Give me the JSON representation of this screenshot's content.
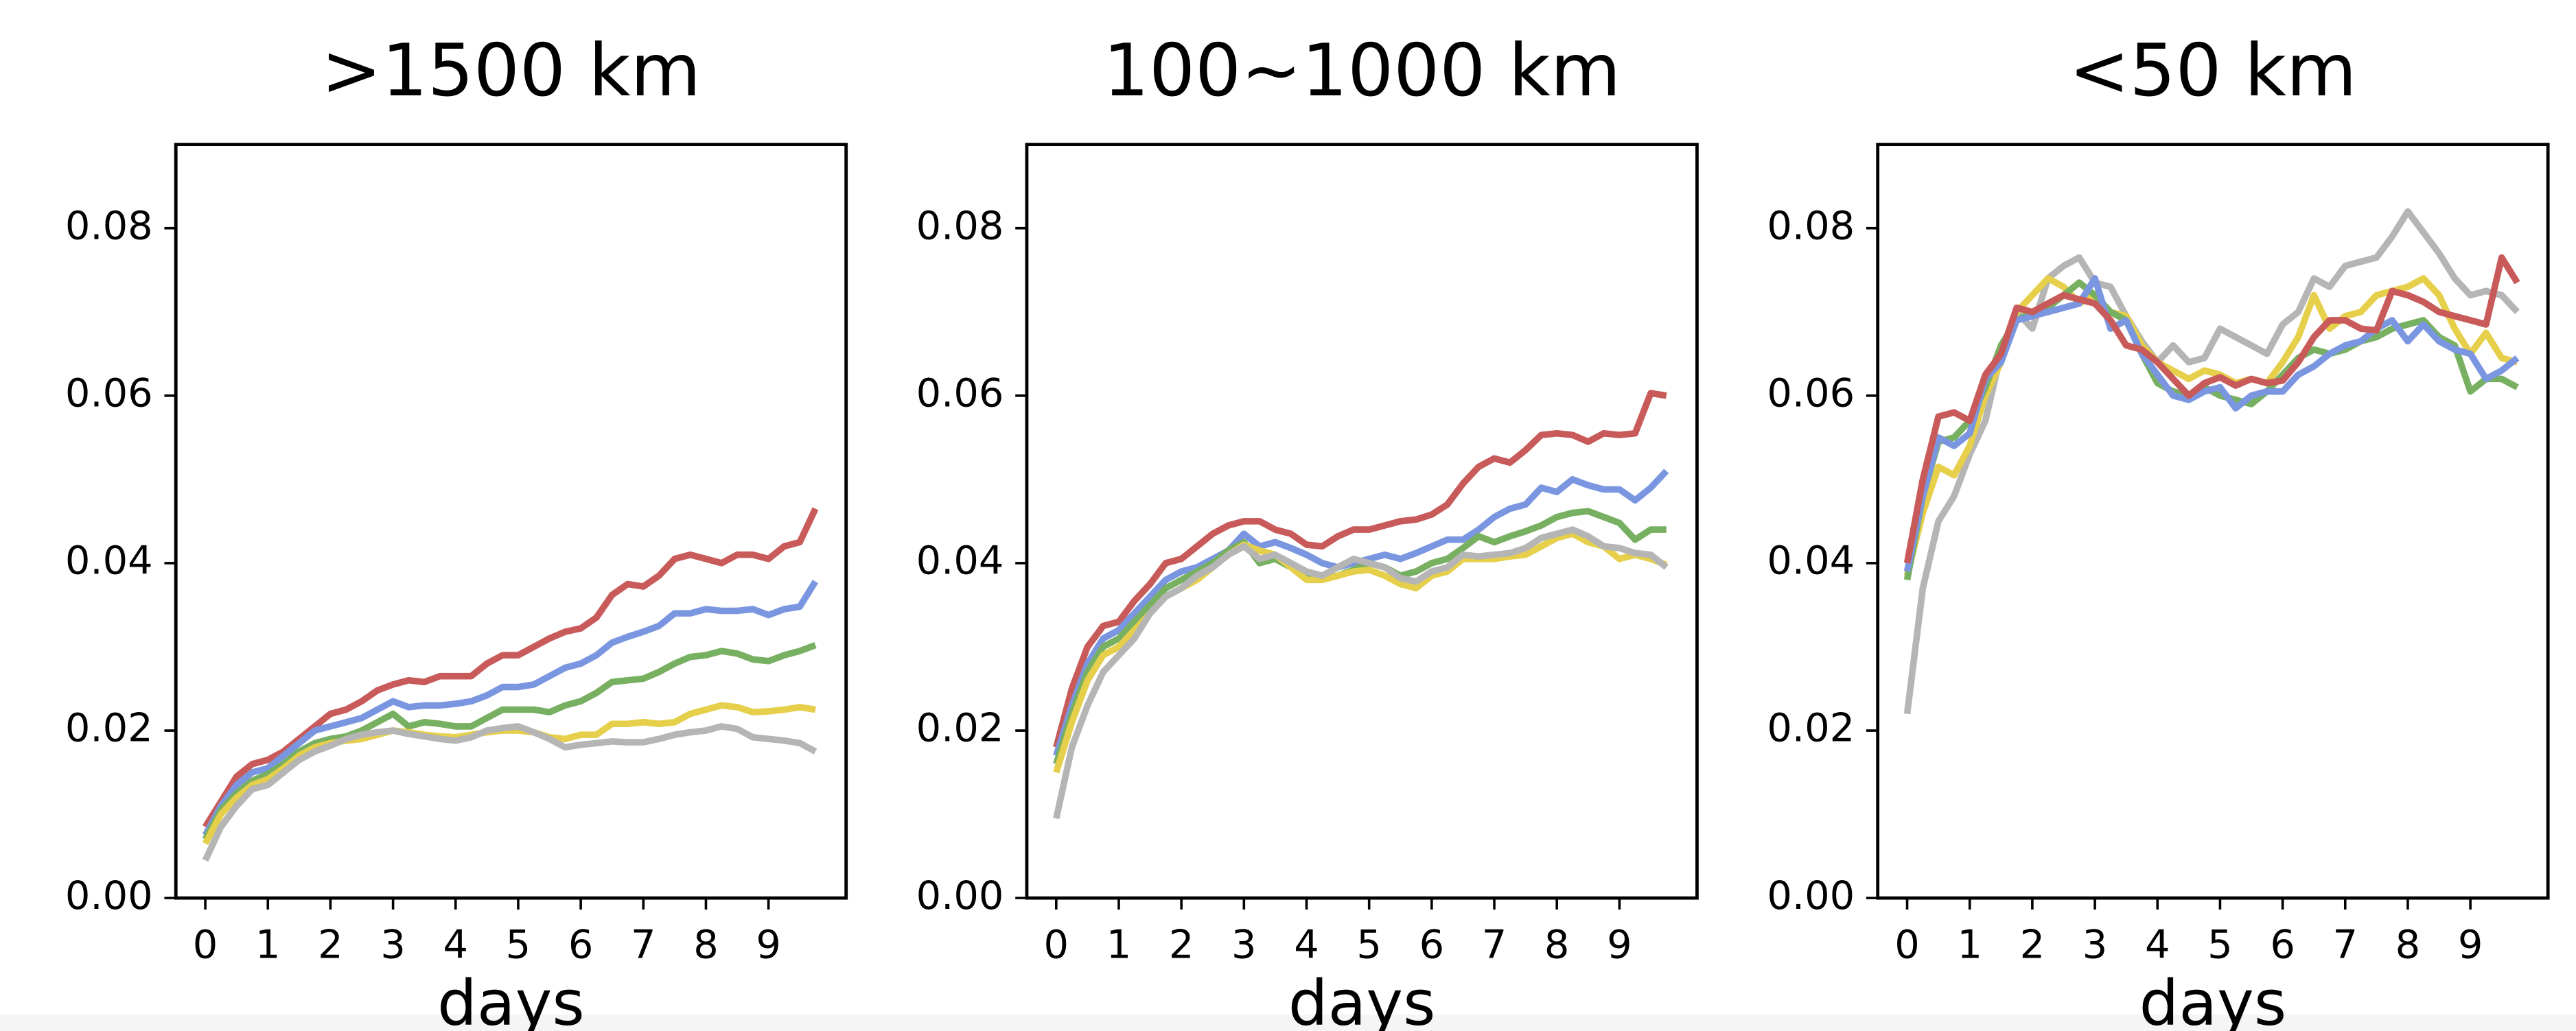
{
  "chart_data": [
    {
      "type": "line",
      "title": ">1500 km",
      "xlabel": "days",
      "x": [
        0,
        0.25,
        0.5,
        0.75,
        1,
        1.25,
        1.5,
        1.75,
        2,
        2.25,
        2.5,
        2.75,
        3,
        3.25,
        3.5,
        3.75,
        4,
        4.25,
        4.5,
        4.75,
        5,
        5.25,
        5.5,
        5.75,
        6,
        6.25,
        6.5,
        6.75,
        7,
        7.25,
        7.5,
        7.75,
        8,
        8.25,
        8.5,
        8.75,
        9,
        9.25,
        9.5,
        9.75
      ],
      "xlim": [
        -0.47,
        10.24
      ],
      "xticks": [
        0,
        1,
        2,
        3,
        4,
        5,
        6,
        7,
        8,
        9
      ],
      "ylim": [
        0,
        0.09
      ],
      "yticks": [
        {
          "value": 0,
          "label": "0.00"
        },
        {
          "value": 0.02,
          "label": "0.02"
        },
        {
          "value": 0.04,
          "label": "0.04"
        },
        {
          "value": 0.06,
          "label": "0.06"
        },
        {
          "value": 0.08,
          "label": "0.08"
        }
      ],
      "series": [
        {
          "color": "#c85a5a",
          "values": [
            0.0085,
            0.0115,
            0.0145,
            0.016,
            0.0165,
            0.0175,
            0.019,
            0.0205,
            0.022,
            0.0225,
            0.0235,
            0.0248,
            0.0255,
            0.026,
            0.0258,
            0.0265,
            0.0265,
            0.0265,
            0.028,
            0.029,
            0.029,
            0.03,
            0.031,
            0.0318,
            0.0322,
            0.0335,
            0.0362,
            0.0375,
            0.0372,
            0.0385,
            0.0405,
            0.041,
            0.0405,
            0.04,
            0.041,
            0.041,
            0.0405,
            0.042,
            0.0425,
            0.0465
          ]
        },
        {
          "color": "#7b96e0",
          "values": [
            0.0075,
            0.011,
            0.0135,
            0.015,
            0.0155,
            0.017,
            0.0185,
            0.02,
            0.0205,
            0.021,
            0.0215,
            0.0225,
            0.0235,
            0.0228,
            0.023,
            0.023,
            0.0232,
            0.0235,
            0.0242,
            0.0252,
            0.0252,
            0.0255,
            0.0265,
            0.0275,
            0.028,
            0.029,
            0.0305,
            0.0312,
            0.0318,
            0.0325,
            0.034,
            0.034,
            0.0345,
            0.0343,
            0.0343,
            0.0345,
            0.0338,
            0.0345,
            0.0348,
            0.0378
          ]
        },
        {
          "color": "#78b062",
          "values": [
            0.007,
            0.0105,
            0.0125,
            0.014,
            0.0148,
            0.016,
            0.0175,
            0.0185,
            0.019,
            0.0193,
            0.02,
            0.021,
            0.022,
            0.0205,
            0.021,
            0.0208,
            0.0205,
            0.0205,
            0.0215,
            0.0225,
            0.0225,
            0.0225,
            0.0222,
            0.023,
            0.0235,
            0.0245,
            0.0258,
            0.026,
            0.0262,
            0.027,
            0.028,
            0.0288,
            0.029,
            0.0295,
            0.0292,
            0.0285,
            0.0283,
            0.029,
            0.0295,
            0.0302
          ]
        },
        {
          "color": "#e6cf4a",
          "values": [
            0.0065,
            0.01,
            0.012,
            0.0135,
            0.0142,
            0.0155,
            0.017,
            0.018,
            0.0185,
            0.0188,
            0.019,
            0.0195,
            0.02,
            0.0198,
            0.0195,
            0.0193,
            0.0192,
            0.0195,
            0.0198,
            0.02,
            0.02,
            0.0198,
            0.0192,
            0.019,
            0.0195,
            0.0195,
            0.0208,
            0.0208,
            0.021,
            0.0208,
            0.021,
            0.022,
            0.0225,
            0.023,
            0.0228,
            0.0222,
            0.0223,
            0.0225,
            0.0228,
            0.0225
          ]
        },
        {
          "color": "#b5b5b5",
          "values": [
            0.0045,
            0.0085,
            0.011,
            0.013,
            0.0135,
            0.015,
            0.0165,
            0.0175,
            0.0182,
            0.019,
            0.0195,
            0.0198,
            0.02,
            0.0196,
            0.0193,
            0.019,
            0.0188,
            0.0192,
            0.02,
            0.0203,
            0.0205,
            0.0198,
            0.019,
            0.018,
            0.0183,
            0.0185,
            0.0187,
            0.0186,
            0.0186,
            0.019,
            0.0195,
            0.0198,
            0.02,
            0.0205,
            0.0202,
            0.0192,
            0.019,
            0.0188,
            0.0185,
            0.0175
          ]
        }
      ]
    },
    {
      "type": "line",
      "title": "100~1000 km",
      "xlabel": "days",
      "x": [
        0,
        0.25,
        0.5,
        0.75,
        1,
        1.25,
        1.5,
        1.75,
        2,
        2.25,
        2.5,
        2.75,
        3,
        3.25,
        3.5,
        3.75,
        4,
        4.25,
        4.5,
        4.75,
        5,
        5.25,
        5.5,
        5.75,
        6,
        6.25,
        6.5,
        6.75,
        7,
        7.25,
        7.5,
        7.75,
        8,
        8.25,
        8.5,
        8.75,
        9,
        9.25,
        9.5,
        9.75
      ],
      "xlim": [
        -0.47,
        10.24
      ],
      "xticks": [
        0,
        1,
        2,
        3,
        4,
        5,
        6,
        7,
        8,
        9
      ],
      "ylim": [
        0,
        0.09
      ],
      "yticks": [
        {
          "value": 0,
          "label": "0.00"
        },
        {
          "value": 0.02,
          "label": "0.02"
        },
        {
          "value": 0.04,
          "label": "0.04"
        },
        {
          "value": 0.06,
          "label": "0.06"
        },
        {
          "value": 0.08,
          "label": "0.08"
        }
      ],
      "series": [
        {
          "color": "#c85a5a",
          "values": [
            0.018,
            0.025,
            0.03,
            0.0325,
            0.033,
            0.0355,
            0.0375,
            0.04,
            0.0405,
            0.042,
            0.0435,
            0.0445,
            0.045,
            0.045,
            0.044,
            0.0435,
            0.0422,
            0.042,
            0.0432,
            0.044,
            0.044,
            0.0445,
            0.045,
            0.0452,
            0.0458,
            0.047,
            0.0495,
            0.0515,
            0.0525,
            0.052,
            0.0535,
            0.0553,
            0.0555,
            0.0553,
            0.0545,
            0.0555,
            0.0553,
            0.0555,
            0.0603,
            0.06
          ]
        },
        {
          "color": "#7b96e0",
          "values": [
            0.017,
            0.023,
            0.028,
            0.031,
            0.032,
            0.034,
            0.036,
            0.038,
            0.039,
            0.0395,
            0.0405,
            0.0415,
            0.0435,
            0.042,
            0.0425,
            0.0418,
            0.041,
            0.04,
            0.0395,
            0.04,
            0.0405,
            0.041,
            0.0405,
            0.0412,
            0.042,
            0.0428,
            0.0428,
            0.044,
            0.0455,
            0.0465,
            0.047,
            0.049,
            0.0485,
            0.05,
            0.0493,
            0.0488,
            0.0488,
            0.0475,
            0.049,
            0.051
          ]
        },
        {
          "color": "#78b062",
          "values": [
            0.016,
            0.022,
            0.027,
            0.03,
            0.031,
            0.033,
            0.035,
            0.037,
            0.038,
            0.039,
            0.04,
            0.0415,
            0.0425,
            0.04,
            0.0405,
            0.0395,
            0.0385,
            0.0382,
            0.0385,
            0.0392,
            0.04,
            0.0395,
            0.0385,
            0.039,
            0.04,
            0.0405,
            0.0418,
            0.0432,
            0.0425,
            0.0432,
            0.0438,
            0.0445,
            0.0455,
            0.046,
            0.0462,
            0.0455,
            0.0448,
            0.0428,
            0.044,
            0.044
          ]
        },
        {
          "color": "#e6cf4a",
          "values": [
            0.015,
            0.021,
            0.026,
            0.029,
            0.03,
            0.032,
            0.034,
            0.036,
            0.037,
            0.038,
            0.0395,
            0.041,
            0.0422,
            0.0415,
            0.041,
            0.0395,
            0.038,
            0.038,
            0.0385,
            0.039,
            0.0392,
            0.0385,
            0.0375,
            0.037,
            0.0385,
            0.039,
            0.0405,
            0.0405,
            0.0405,
            0.0408,
            0.041,
            0.042,
            0.043,
            0.0435,
            0.0425,
            0.042,
            0.0405,
            0.041,
            0.0405,
            0.0398
          ]
        },
        {
          "color": "#b5b5b5",
          "values": [
            0.0095,
            0.018,
            0.023,
            0.027,
            0.029,
            0.031,
            0.034,
            0.036,
            0.037,
            0.0385,
            0.0395,
            0.041,
            0.042,
            0.0405,
            0.041,
            0.04,
            0.039,
            0.0385,
            0.0395,
            0.0405,
            0.04,
            0.0395,
            0.0382,
            0.0378,
            0.039,
            0.0395,
            0.041,
            0.0408,
            0.041,
            0.0412,
            0.0418,
            0.043,
            0.0435,
            0.044,
            0.0432,
            0.042,
            0.0418,
            0.0412,
            0.041,
            0.0395
          ]
        }
      ]
    },
    {
      "type": "line",
      "title": "<50 km",
      "xlabel": "days",
      "x": [
        0,
        0.25,
        0.5,
        0.75,
        1,
        1.25,
        1.5,
        1.75,
        2,
        2.25,
        2.5,
        2.75,
        3,
        3.25,
        3.5,
        3.75,
        4,
        4.25,
        4.5,
        4.75,
        5,
        5.25,
        5.5,
        5.75,
        6,
        6.25,
        6.5,
        6.75,
        7,
        7.25,
        7.5,
        7.75,
        8,
        8.25,
        8.5,
        8.75,
        9,
        9.25,
        9.5,
        9.75
      ],
      "xlim": [
        -0.47,
        10.24
      ],
      "xticks": [
        0,
        1,
        2,
        3,
        4,
        5,
        6,
        7,
        8,
        9
      ],
      "ylim": [
        0,
        0.09
      ],
      "yticks": [
        {
          "value": 0,
          "label": "0.00"
        },
        {
          "value": 0.02,
          "label": "0.02"
        },
        {
          "value": 0.04,
          "label": "0.04"
        },
        {
          "value": 0.06,
          "label": "0.06"
        },
        {
          "value": 0.08,
          "label": "0.08"
        }
      ],
      "series": [
        {
          "color": "#b5b5b5",
          "values": [
            0.022,
            0.037,
            0.045,
            0.048,
            0.053,
            0.057,
            0.065,
            0.07,
            0.068,
            0.074,
            0.0755,
            0.0765,
            0.0735,
            0.073,
            0.0695,
            0.0665,
            0.064,
            0.066,
            0.064,
            0.0645,
            0.068,
            0.067,
            0.066,
            0.065,
            0.0685,
            0.07,
            0.074,
            0.073,
            0.0755,
            0.076,
            0.0765,
            0.079,
            0.082,
            0.0795,
            0.077,
            0.074,
            0.072,
            0.0725,
            0.072,
            0.07
          ]
        },
        {
          "color": "#e6cf4a",
          "values": [
            0.0385,
            0.046,
            0.0515,
            0.0505,
            0.054,
            0.06,
            0.064,
            0.07,
            0.072,
            0.074,
            0.073,
            0.071,
            0.072,
            0.07,
            0.0695,
            0.066,
            0.064,
            0.063,
            0.062,
            0.063,
            0.0625,
            0.0615,
            0.062,
            0.0615,
            0.064,
            0.067,
            0.072,
            0.068,
            0.0695,
            0.07,
            0.072,
            0.0725,
            0.073,
            0.074,
            0.072,
            0.068,
            0.065,
            0.0675,
            0.0645,
            0.064
          ]
        },
        {
          "color": "#78b062",
          "values": [
            0.038,
            0.048,
            0.0545,
            0.055,
            0.057,
            0.061,
            0.066,
            0.069,
            0.07,
            0.0705,
            0.072,
            0.0735,
            0.072,
            0.07,
            0.069,
            0.065,
            0.0615,
            0.0605,
            0.06,
            0.061,
            0.06,
            0.0595,
            0.059,
            0.0605,
            0.0625,
            0.0645,
            0.0655,
            0.065,
            0.0655,
            0.0665,
            0.067,
            0.068,
            0.0685,
            0.069,
            0.067,
            0.066,
            0.0605,
            0.062,
            0.062,
            0.061
          ]
        },
        {
          "color": "#7b96e0",
          "values": [
            0.039,
            0.048,
            0.055,
            0.054,
            0.0555,
            0.062,
            0.064,
            0.069,
            0.0695,
            0.07,
            0.0705,
            0.071,
            0.074,
            0.068,
            0.069,
            0.065,
            0.0625,
            0.06,
            0.0595,
            0.0605,
            0.061,
            0.0585,
            0.06,
            0.0605,
            0.0605,
            0.0625,
            0.0635,
            0.065,
            0.066,
            0.0665,
            0.068,
            0.069,
            0.0665,
            0.0685,
            0.0665,
            0.0655,
            0.065,
            0.062,
            0.063,
            0.0645
          ]
        },
        {
          "color": "#c85a5a",
          "values": [
            0.04,
            0.05,
            0.0575,
            0.058,
            0.057,
            0.0625,
            0.065,
            0.0705,
            0.07,
            0.071,
            0.072,
            0.0715,
            0.071,
            0.069,
            0.066,
            0.0655,
            0.064,
            0.062,
            0.06,
            0.0615,
            0.0622,
            0.0612,
            0.062,
            0.0615,
            0.0618,
            0.064,
            0.067,
            0.069,
            0.069,
            0.068,
            0.0678,
            0.0725,
            0.072,
            0.0712,
            0.07,
            0.0695,
            0.069,
            0.0685,
            0.0765,
            0.0735
          ]
        }
      ]
    }
  ]
}
